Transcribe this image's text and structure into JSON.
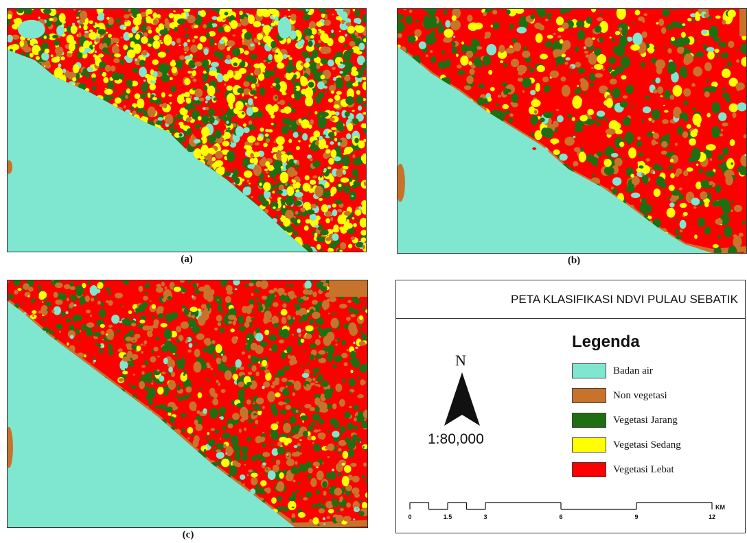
{
  "panels": [
    {
      "id": "a",
      "caption": "(a)"
    },
    {
      "id": "b",
      "caption": "(b)"
    },
    {
      "id": "c",
      "caption": "(c)"
    }
  ],
  "legend": {
    "title": "PETA KLASIFIKASI NDVI PULAU SEBATIK",
    "heading": "Legenda",
    "items": [
      {
        "label": "Badan air",
        "color": "#7fe6cf"
      },
      {
        "label": "Non vegetasi",
        "color": "#c8732c"
      },
      {
        "label": "Vegetasi Jarang",
        "color": "#1f6e12"
      },
      {
        "label": "Vegetasi Sedang",
        "color": "#ffff00"
      },
      {
        "label": "Vegetasi Lebat",
        "color": "#ff0000"
      }
    ],
    "north_label": "N",
    "scale_ratio": "1:80,000",
    "scale_ticks": [
      "0",
      "1.5",
      "3",
      "6",
      "9",
      "12"
    ],
    "scale_unit": "KM"
  },
  "colors": {
    "water": "#7fe6cf",
    "nonveg": "#c8732c",
    "sparse": "#1f6e12",
    "medium": "#ffff00",
    "dense": "#ff0000"
  }
}
